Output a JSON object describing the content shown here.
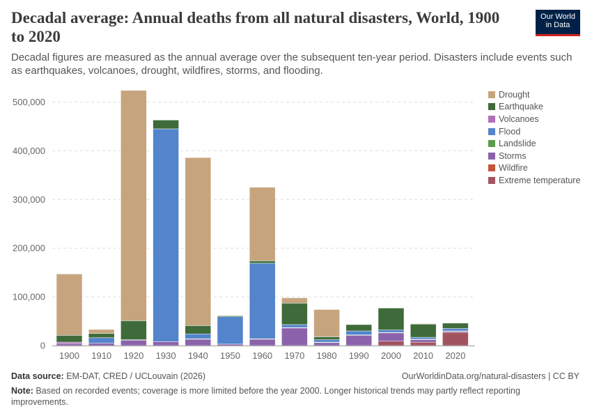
{
  "header": {
    "title": "Decadal average: Annual deaths from all natural disasters, World, 1900 to 2020",
    "subtitle": "Decadal figures are measured as the annual average over the subsequent ten-year period. Disasters include events such as earthquakes, volcanoes, drought, wildfires, storms, and flooding.",
    "logo_line1": "Our World",
    "logo_line2": "in Data"
  },
  "footer": {
    "source_label": "Data source:",
    "source_text": " EM-DAT, CRED / UCLouvain (2026)",
    "url": "OurWorldinData.org/natural-disasters | CC BY",
    "note_label": "Note:",
    "note_text": " Based on recorded events; coverage is more limited before the year 2000. Longer historical trends may partly reflect reporting improvements."
  },
  "chart_data": {
    "type": "bar",
    "stacked": true,
    "categories": [
      "1900",
      "1910",
      "1920",
      "1930",
      "1940",
      "1950",
      "1960",
      "1970",
      "1980",
      "1990",
      "2000",
      "2010",
      "2020"
    ],
    "ylim": [
      0,
      520000
    ],
    "yticks": [
      0,
      100000,
      200000,
      300000,
      400000,
      500000
    ],
    "ytick_labels": [
      "0",
      "100,000",
      "200,000",
      "300,000",
      "400,000",
      "500,000"
    ],
    "grid": true,
    "legend_placement": "right",
    "series": [
      {
        "name": "Extreme temperature",
        "color": "#a2545e",
        "values": [
          0,
          0,
          0,
          0,
          0,
          0,
          0,
          0,
          0,
          0,
          9000,
          7000,
          27000
        ]
      },
      {
        "name": "Wildfire",
        "color": "#c2563a",
        "values": [
          0,
          0,
          0,
          0,
          0,
          0,
          0,
          0,
          0,
          0,
          0,
          0,
          0
        ]
      },
      {
        "name": "Storms",
        "color": "#8b62ab",
        "values": [
          4000,
          5000,
          11000,
          8000,
          13000,
          3000,
          13000,
          36000,
          6000,
          21000,
          17000,
          5000,
          2000
        ]
      },
      {
        "name": "Landslide",
        "color": "#5b9c4a",
        "values": [
          0,
          0,
          1000,
          0,
          1000,
          0,
          1000,
          1000,
          1000,
          1000,
          1000,
          1000,
          1000
        ]
      },
      {
        "name": "Flood",
        "color": "#5384cc",
        "values": [
          0,
          11000,
          0,
          437000,
          10000,
          56000,
          155000,
          6000,
          5000,
          8000,
          5000,
          4000,
          5000
        ]
      },
      {
        "name": "Volcanoes",
        "color": "#b070b8",
        "values": [
          3000,
          0,
          0,
          0,
          0,
          0,
          0,
          0,
          0,
          0,
          0,
          0,
          0
        ]
      },
      {
        "name": "Earthquake",
        "color": "#3f6b3a",
        "values": [
          14000,
          9000,
          39000,
          18000,
          17000,
          2000,
          5000,
          44000,
          6000,
          13000,
          45000,
          27000,
          11000
        ]
      },
      {
        "name": "Drought",
        "color": "#c6a57e",
        "values": [
          126000,
          8000,
          473000,
          0,
          345000,
          0,
          151000,
          11000,
          56000,
          0,
          0,
          1000,
          0
        ]
      }
    ],
    "legend_order": [
      "Drought",
      "Earthquake",
      "Volcanoes",
      "Flood",
      "Landslide",
      "Storms",
      "Wildfire",
      "Extreme temperature"
    ]
  }
}
